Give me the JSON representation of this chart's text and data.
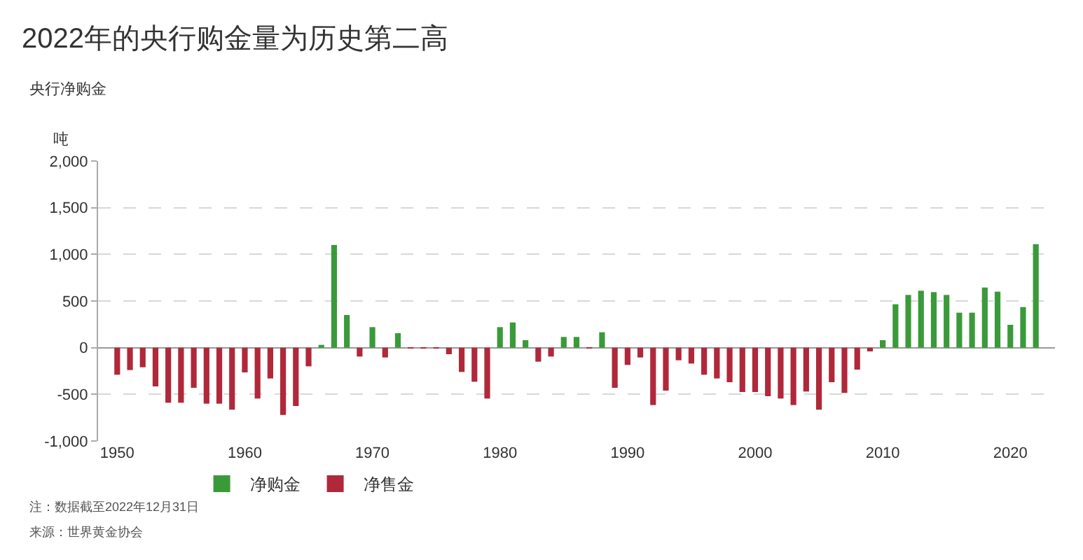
{
  "chart_data": {
    "type": "bar",
    "title": "2022年的央行购金量为历史第二高",
    "ylabel": "央行净购金",
    "annotations": [
      "吨",
      "注：数据截至2022年12月31日",
      "来源：世界黄金协会"
    ],
    "x": [
      1950,
      1951,
      1952,
      1953,
      1954,
      1955,
      1956,
      1957,
      1958,
      1959,
      1960,
      1961,
      1962,
      1963,
      1964,
      1965,
      1966,
      1967,
      1968,
      1969,
      1970,
      1971,
      1972,
      1973,
      1974,
      1975,
      1976,
      1977,
      1978,
      1979,
      1980,
      1981,
      1982,
      1983,
      1984,
      1985,
      1986,
      1987,
      1988,
      1989,
      1990,
      1991,
      1992,
      1993,
      1994,
      1995,
      1996,
      1997,
      1998,
      1999,
      2000,
      2001,
      2002,
      2003,
      2004,
      2005,
      2006,
      2007,
      2008,
      2009,
      2010,
      2011,
      2012,
      2013,
      2014,
      2015,
      2016,
      2017,
      2018,
      2019,
      2020,
      2021,
      2022
    ],
    "series": [
      {
        "name": "净购金",
        "color": "#3a9a3a",
        "values": [
          null,
          null,
          null,
          null,
          null,
          null,
          null,
          null,
          null,
          null,
          null,
          null,
          null,
          null,
          null,
          null,
          30,
          1100,
          350,
          null,
          220,
          null,
          155,
          null,
          null,
          null,
          null,
          null,
          null,
          null,
          220,
          270,
          80,
          null,
          null,
          115,
          115,
          null,
          165,
          null,
          null,
          null,
          null,
          null,
          null,
          null,
          null,
          null,
          null,
          null,
          null,
          null,
          null,
          null,
          null,
          null,
          null,
          null,
          null,
          null,
          80,
          465,
          565,
          610,
          595,
          565,
          375,
          375,
          645,
          600,
          245,
          435,
          1110
        ]
      },
      {
        "name": "净售金",
        "color": "#b0283a",
        "values": [
          -290,
          -240,
          -210,
          -415,
          -590,
          -590,
          -430,
          -600,
          -600,
          -665,
          -265,
          -545,
          -330,
          -720,
          -625,
          -200,
          null,
          null,
          null,
          -95,
          null,
          -105,
          null,
          -5,
          -5,
          -10,
          -70,
          -260,
          -365,
          -545,
          null,
          null,
          null,
          -150,
          -95,
          null,
          null,
          -10,
          null,
          -430,
          -185,
          -105,
          -615,
          -460,
          -135,
          -170,
          -290,
          -330,
          -370,
          -475,
          -475,
          -520,
          -545,
          -615,
          -470,
          -665,
          -370,
          -485,
          -235,
          -40,
          null,
          null,
          null,
          null,
          null,
          null,
          null,
          null,
          null,
          null,
          null,
          null,
          null
        ]
      }
    ],
    "xlim": [
      1948.5,
      2023.5
    ],
    "xticks": [
      1950,
      1960,
      1970,
      1980,
      1990,
      2000,
      2010,
      2020
    ],
    "ylim": [
      -1000,
      2000
    ],
    "yticks": [
      {
        "value": -1000,
        "label": "-1,000"
      },
      -500,
      0,
      500,
      {
        "value": 1000,
        "label": "1,000"
      },
      {
        "value": 1500,
        "label": "1,500"
      },
      {
        "value": 2000,
        "label": "2,000"
      }
    ],
    "grid": "y",
    "legend": "bottom left"
  }
}
